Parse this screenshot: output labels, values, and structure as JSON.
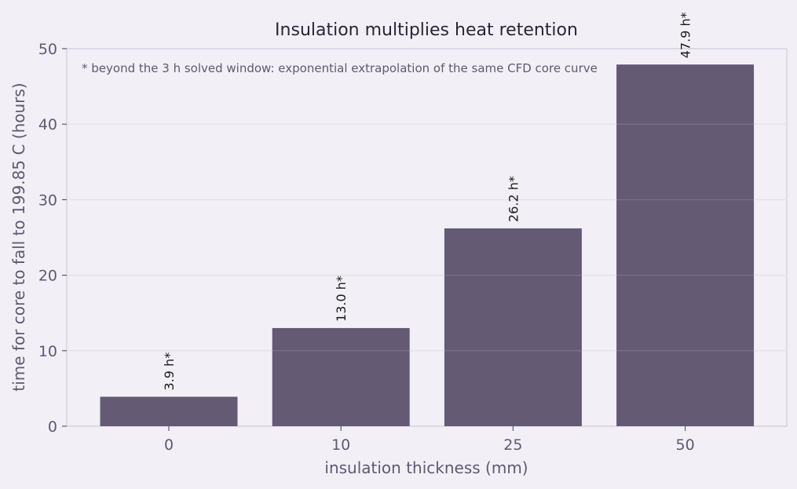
{
  "colors": {
    "background": "#f2f0f6",
    "plot_background": "#f2f0f6",
    "bar": "#645a74",
    "grid": "#e3e0ea",
    "axis": "#d6d2e0",
    "text": "#5f5873",
    "title": "#2a2438"
  },
  "chart_data": {
    "type": "bar",
    "title": "Insulation multiplies heat retention",
    "xlabel": "insulation thickness (mm)",
    "ylabel": "time for core to fall to 199.85 C (hours)",
    "categories": [
      "0",
      "10",
      "25",
      "50"
    ],
    "values": [
      3.9,
      13.0,
      26.2,
      47.9
    ],
    "data_labels": [
      "3.9 h*",
      "13.0 h*",
      "26.2 h*",
      "47.9 h*"
    ],
    "ylim": [
      0,
      50
    ],
    "yticks": [
      0,
      10,
      20,
      30,
      40,
      50
    ],
    "grid": true,
    "annotation": "* beyond the 3 h solved window: exponential extrapolation of the same CFD core curve"
  }
}
